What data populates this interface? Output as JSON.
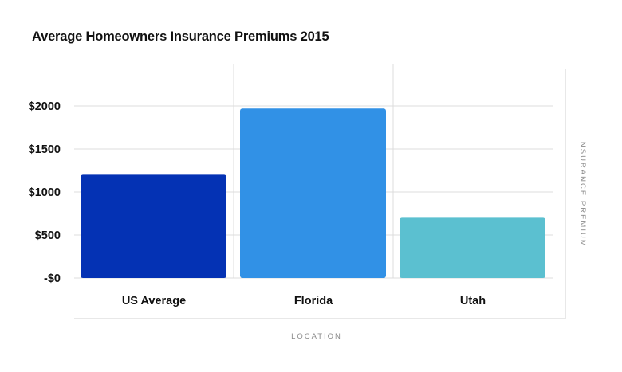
{
  "chart_data": {
    "type": "bar",
    "title": "Average Homeowners Insurance Premiums 2015",
    "xlabel": "LOCATION",
    "ylabel": "INSURANCE PREMIUM",
    "categories": [
      "US Average",
      "Florida",
      "Utah"
    ],
    "values": [
      1200,
      1970,
      700
    ],
    "colors": [
      "#0432b4",
      "#3191e6",
      "#5bc0d0"
    ],
    "ylim": [
      0,
      2000
    ],
    "yticks": [
      0,
      500,
      1000,
      1500,
      2000
    ],
    "ytick_labels": [
      "-$0",
      "$500",
      "$1000",
      "$1500",
      "$2000"
    ],
    "grid": true,
    "legend": "none"
  }
}
